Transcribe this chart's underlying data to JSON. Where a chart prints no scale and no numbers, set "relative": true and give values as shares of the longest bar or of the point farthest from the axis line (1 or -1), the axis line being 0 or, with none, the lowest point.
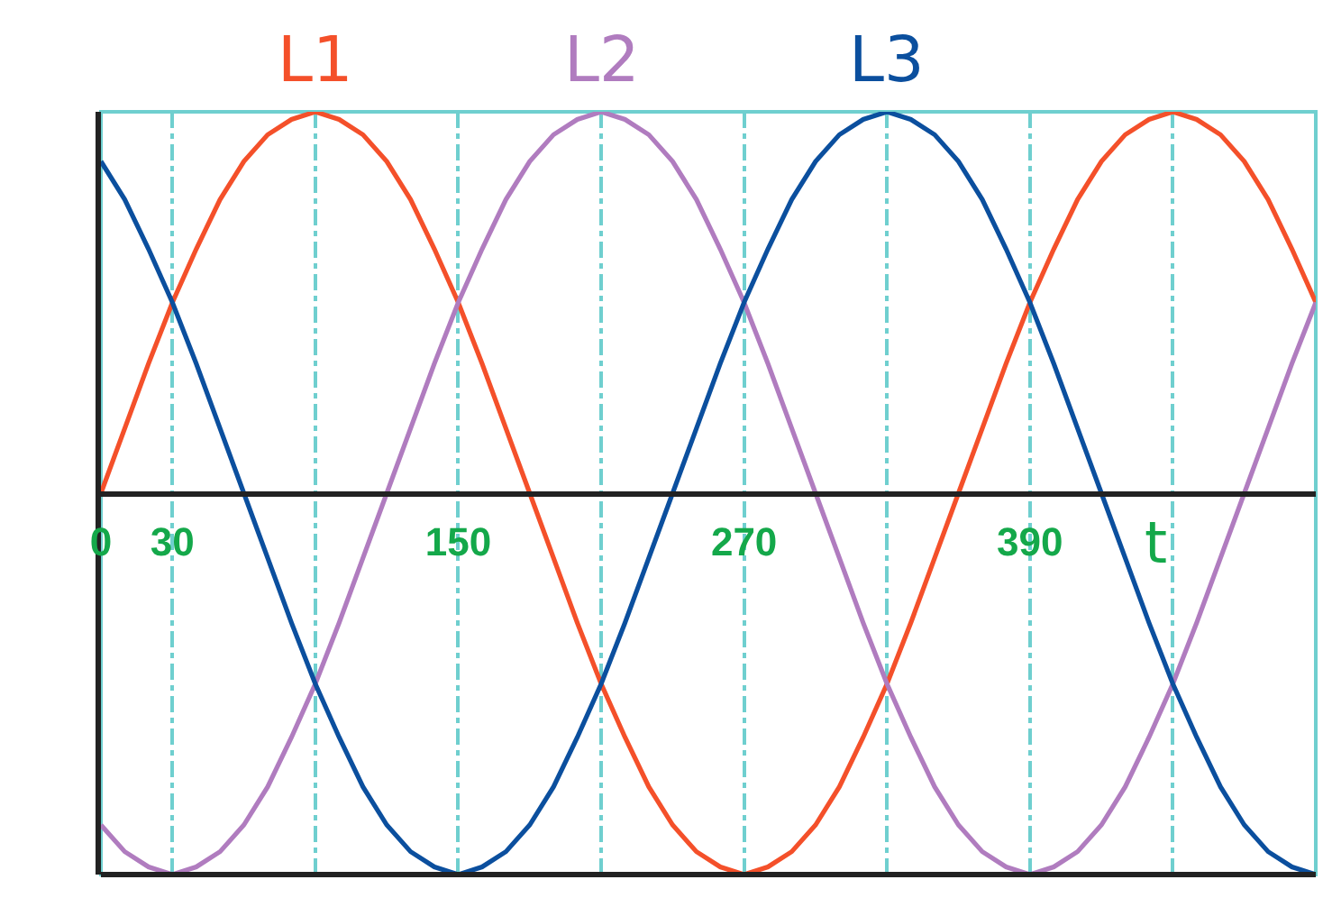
{
  "chart_data": {
    "type": "line",
    "relative": true,
    "grid": "x",
    "xlabel": "t",
    "x": [
      0,
      10,
      20,
      30,
      40,
      50,
      60,
      70,
      80,
      90,
      100,
      110,
      120,
      130,
      140,
      150,
      160,
      170,
      180,
      190,
      200,
      210,
      220,
      230,
      240,
      250,
      260,
      270,
      280,
      290,
      300,
      310,
      320,
      330,
      340,
      350,
      360,
      370,
      380,
      390,
      400,
      410,
      420,
      430,
      440,
      450,
      460,
      470,
      480,
      490,
      500,
      510
    ],
    "xlim": [
      0,
      510
    ],
    "xticks": [
      0,
      30,
      {
        "value": 90,
        "label": null
      },
      150,
      {
        "value": 210,
        "label": null
      },
      270,
      {
        "value": 330,
        "label": null
      },
      390,
      {
        "value": 450,
        "label": null
      }
    ],
    "series": [
      {
        "name": "L1",
        "color": "#f4502a",
        "values": [
          0,
          0.17,
          0.34,
          0.5,
          0.64,
          0.77,
          0.87,
          0.94,
          0.98,
          1,
          0.98,
          0.94,
          0.87,
          0.77,
          0.64,
          0.5,
          0.34,
          0.17,
          0,
          -0.17,
          -0.34,
          -0.5,
          -0.64,
          -0.77,
          -0.87,
          -0.94,
          -0.98,
          -1,
          -0.98,
          -0.94,
          -0.87,
          -0.77,
          -0.64,
          -0.5,
          -0.34,
          -0.17,
          0,
          0.17,
          0.34,
          0.5,
          0.64,
          0.77,
          0.87,
          0.94,
          0.98,
          1,
          0.98,
          0.94,
          0.87,
          0.77,
          0.64,
          0.5
        ]
      },
      {
        "name": "L2",
        "color": "#b07cbf",
        "values": [
          -0.87,
          -0.94,
          -0.98,
          -1,
          -0.98,
          -0.94,
          -0.87,
          -0.77,
          -0.64,
          -0.5,
          -0.34,
          -0.17,
          0,
          0.17,
          0.34,
          0.5,
          0.64,
          0.77,
          0.87,
          0.94,
          0.98,
          1,
          0.98,
          0.94,
          0.87,
          0.77,
          0.64,
          0.5,
          0.34,
          0.17,
          0,
          -0.17,
          -0.34,
          -0.5,
          -0.64,
          -0.77,
          -0.87,
          -0.94,
          -0.98,
          -1,
          -0.98,
          -0.94,
          -0.87,
          -0.77,
          -0.64,
          -0.5,
          -0.34,
          -0.17,
          0,
          0.17,
          0.34,
          0.5
        ]
      },
      {
        "name": "L3",
        "color": "#0b4f9e",
        "values": [
          0.87,
          0.77,
          0.64,
          0.5,
          0.34,
          0.17,
          0,
          -0.17,
          -0.34,
          -0.5,
          -0.64,
          -0.77,
          -0.87,
          -0.94,
          -0.98,
          -1,
          -0.98,
          -0.94,
          -0.87,
          -0.77,
          -0.64,
          -0.5,
          -0.34,
          -0.17,
          0,
          0.17,
          0.34,
          0.5,
          0.64,
          0.77,
          0.87,
          0.94,
          0.98,
          1,
          0.98,
          0.94,
          0.87,
          0.77,
          0.64,
          0.5,
          0.34,
          0.17,
          0,
          -0.17,
          -0.34,
          -0.5,
          -0.64,
          -0.77,
          -0.87,
          -0.94,
          -0.98,
          -1
        ]
      }
    ]
  }
}
